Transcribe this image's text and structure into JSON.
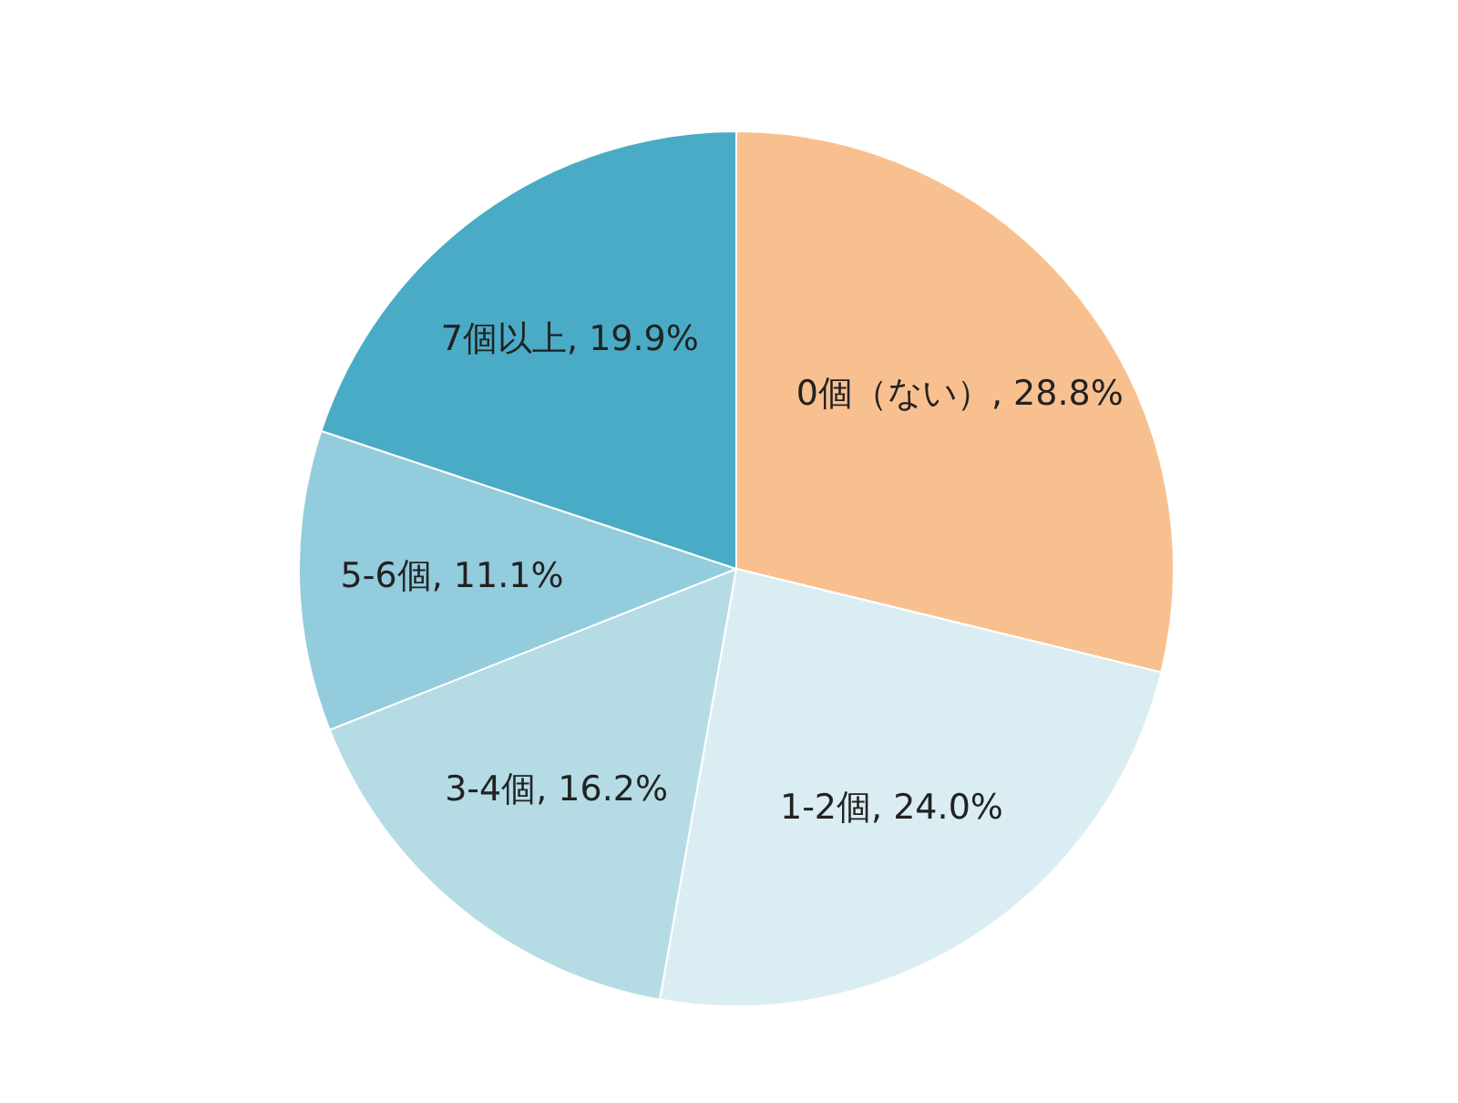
{
  "chart_data": {
    "type": "pie",
    "categories": [
      "0個（ない）",
      "1-2個",
      "3-4個",
      "5-6個",
      "7個以上"
    ],
    "values": [
      28.8,
      24.0,
      16.2,
      11.1,
      19.9
    ],
    "value_labels": [
      "28.8%",
      "24.0%",
      "16.2%",
      "11.1%",
      "19.9%"
    ],
    "colors": [
      "#f9c08f",
      "#daedf3",
      "#b5dce5",
      "#93ccdc",
      "#4aabc6"
    ],
    "legend": false
  }
}
